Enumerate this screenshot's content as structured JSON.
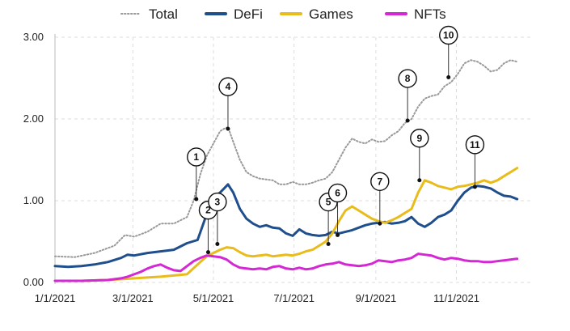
{
  "chart_data": {
    "type": "line",
    "title": "",
    "xlabel": "",
    "ylabel": "",
    "x_range": [
      0,
      360
    ],
    "ylim": [
      0,
      3.0
    ],
    "yticks": [
      {
        "value": 0,
        "label": "0.00"
      },
      {
        "value": 1,
        "label": "1.00"
      },
      {
        "value": 2,
        "label": "2.00"
      },
      {
        "value": 3,
        "label": "3.00"
      }
    ],
    "xticks": [
      {
        "day": 0,
        "label": "1/1/2021"
      },
      {
        "day": 59,
        "label": "3/1/2021"
      },
      {
        "day": 120,
        "label": "5/1/2021"
      },
      {
        "day": 181,
        "label": "7/1/2021"
      },
      {
        "day": 243,
        "label": "9/1/2021"
      },
      {
        "day": 304,
        "label": "11/1/2021"
      }
    ],
    "grid": true,
    "legend": "top",
    "x_unit": "days since 1/1/2021",
    "series": [
      {
        "name": "Total",
        "color": "#999999",
        "style": "dotted",
        "points": [
          [
            0,
            0.32
          ],
          [
            15,
            0.31
          ],
          [
            30,
            0.36
          ],
          [
            45,
            0.45
          ],
          [
            53,
            0.58
          ],
          [
            60,
            0.56
          ],
          [
            70,
            0.62
          ],
          [
            80,
            0.72
          ],
          [
            90,
            0.72
          ],
          [
            100,
            0.8
          ],
          [
            105,
            1.0
          ],
          [
            110,
            1.32
          ],
          [
            115,
            1.55
          ],
          [
            120,
            1.7
          ],
          [
            125,
            1.85
          ],
          [
            128,
            1.88
          ],
          [
            131,
            1.9
          ],
          [
            135,
            1.72
          ],
          [
            140,
            1.5
          ],
          [
            145,
            1.35
          ],
          [
            150,
            1.3
          ],
          [
            155,
            1.27
          ],
          [
            160,
            1.26
          ],
          [
            165,
            1.25
          ],
          [
            170,
            1.2
          ],
          [
            175,
            1.2
          ],
          [
            180,
            1.23
          ],
          [
            185,
            1.2
          ],
          [
            190,
            1.2
          ],
          [
            195,
            1.22
          ],
          [
            200,
            1.25
          ],
          [
            205,
            1.27
          ],
          [
            210,
            1.35
          ],
          [
            215,
            1.5
          ],
          [
            220,
            1.65
          ],
          [
            225,
            1.76
          ],
          [
            230,
            1.72
          ],
          [
            235,
            1.7
          ],
          [
            240,
            1.75
          ],
          [
            245,
            1.72
          ],
          [
            250,
            1.73
          ],
          [
            255,
            1.8
          ],
          [
            260,
            1.85
          ],
          [
            265,
            1.95
          ],
          [
            270,
            2.0
          ],
          [
            275,
            2.15
          ],
          [
            280,
            2.25
          ],
          [
            285,
            2.28
          ],
          [
            290,
            2.3
          ],
          [
            295,
            2.4
          ],
          [
            300,
            2.45
          ],
          [
            305,
            2.55
          ],
          [
            310,
            2.68
          ],
          [
            315,
            2.72
          ],
          [
            320,
            2.7
          ],
          [
            325,
            2.65
          ],
          [
            330,
            2.58
          ],
          [
            335,
            2.6
          ],
          [
            340,
            2.68
          ],
          [
            345,
            2.72
          ],
          [
            350,
            2.7
          ]
        ]
      },
      {
        "name": "DeFi",
        "color": "#1f4e8c",
        "style": "solid",
        "points": [
          [
            0,
            0.2
          ],
          [
            10,
            0.19
          ],
          [
            20,
            0.2
          ],
          [
            30,
            0.22
          ],
          [
            40,
            0.25
          ],
          [
            50,
            0.3
          ],
          [
            55,
            0.34
          ],
          [
            60,
            0.33
          ],
          [
            70,
            0.36
          ],
          [
            80,
            0.38
          ],
          [
            90,
            0.4
          ],
          [
            100,
            0.48
          ],
          [
            108,
            0.52
          ],
          [
            113,
            0.75
          ],
          [
            117,
            0.95
          ],
          [
            121,
            1.05
          ],
          [
            125,
            1.1
          ],
          [
            128,
            1.15
          ],
          [
            131,
            1.2
          ],
          [
            135,
            1.1
          ],
          [
            140,
            0.9
          ],
          [
            145,
            0.78
          ],
          [
            150,
            0.72
          ],
          [
            155,
            0.68
          ],
          [
            160,
            0.7
          ],
          [
            165,
            0.67
          ],
          [
            170,
            0.66
          ],
          [
            175,
            0.6
          ],
          [
            180,
            0.57
          ],
          [
            185,
            0.65
          ],
          [
            190,
            0.6
          ],
          [
            195,
            0.58
          ],
          [
            200,
            0.57
          ],
          [
            205,
            0.58
          ],
          [
            210,
            0.62
          ],
          [
            215,
            0.6
          ],
          [
            220,
            0.62
          ],
          [
            225,
            0.64
          ],
          [
            230,
            0.67
          ],
          [
            235,
            0.7
          ],
          [
            240,
            0.72
          ],
          [
            245,
            0.73
          ],
          [
            250,
            0.74
          ],
          [
            255,
            0.72
          ],
          [
            260,
            0.73
          ],
          [
            265,
            0.75
          ],
          [
            270,
            0.8
          ],
          [
            275,
            0.72
          ],
          [
            280,
            0.68
          ],
          [
            285,
            0.73
          ],
          [
            290,
            0.8
          ],
          [
            295,
            0.83
          ],
          [
            300,
            0.88
          ],
          [
            305,
            1.0
          ],
          [
            310,
            1.1
          ],
          [
            315,
            1.16
          ],
          [
            320,
            1.18
          ],
          [
            325,
            1.17
          ],
          [
            330,
            1.15
          ],
          [
            335,
            1.1
          ],
          [
            340,
            1.06
          ],
          [
            345,
            1.05
          ],
          [
            350,
            1.02
          ]
        ]
      },
      {
        "name": "Games",
        "color": "#e8bc1c",
        "style": "solid",
        "points": [
          [
            0,
            0.02
          ],
          [
            20,
            0.02
          ],
          [
            40,
            0.03
          ],
          [
            60,
            0.05
          ],
          [
            80,
            0.07
          ],
          [
            100,
            0.1
          ],
          [
            110,
            0.25
          ],
          [
            115,
            0.32
          ],
          [
            120,
            0.36
          ],
          [
            125,
            0.4
          ],
          [
            130,
            0.43
          ],
          [
            135,
            0.42
          ],
          [
            140,
            0.37
          ],
          [
            145,
            0.33
          ],
          [
            150,
            0.32
          ],
          [
            155,
            0.33
          ],
          [
            160,
            0.34
          ],
          [
            165,
            0.32
          ],
          [
            170,
            0.33
          ],
          [
            175,
            0.34
          ],
          [
            180,
            0.33
          ],
          [
            185,
            0.35
          ],
          [
            190,
            0.38
          ],
          [
            195,
            0.4
          ],
          [
            200,
            0.45
          ],
          [
            205,
            0.5
          ],
          [
            210,
            0.6
          ],
          [
            215,
            0.75
          ],
          [
            220,
            0.88
          ],
          [
            225,
            0.93
          ],
          [
            230,
            0.88
          ],
          [
            235,
            0.83
          ],
          [
            240,
            0.78
          ],
          [
            245,
            0.75
          ],
          [
            250,
            0.73
          ],
          [
            255,
            0.76
          ],
          [
            260,
            0.8
          ],
          [
            265,
            0.85
          ],
          [
            270,
            0.9
          ],
          [
            275,
            1.1
          ],
          [
            280,
            1.25
          ],
          [
            285,
            1.22
          ],
          [
            290,
            1.18
          ],
          [
            295,
            1.16
          ],
          [
            300,
            1.14
          ],
          [
            305,
            1.17
          ],
          [
            310,
            1.18
          ],
          [
            315,
            1.2
          ],
          [
            320,
            1.22
          ],
          [
            325,
            1.25
          ],
          [
            330,
            1.22
          ],
          [
            335,
            1.25
          ],
          [
            340,
            1.3
          ],
          [
            345,
            1.35
          ],
          [
            350,
            1.4
          ]
        ]
      },
      {
        "name": "NFTs",
        "color": "#d328d3",
        "style": "solid",
        "points": [
          [
            0,
            0.02
          ],
          [
            20,
            0.02
          ],
          [
            40,
            0.03
          ],
          [
            50,
            0.05
          ],
          [
            55,
            0.07
          ],
          [
            60,
            0.1
          ],
          [
            65,
            0.13
          ],
          [
            70,
            0.17
          ],
          [
            75,
            0.2
          ],
          [
            80,
            0.22
          ],
          [
            85,
            0.18
          ],
          [
            90,
            0.15
          ],
          [
            95,
            0.14
          ],
          [
            100,
            0.2
          ],
          [
            105,
            0.26
          ],
          [
            110,
            0.3
          ],
          [
            115,
            0.33
          ],
          [
            120,
            0.32
          ],
          [
            125,
            0.31
          ],
          [
            130,
            0.28
          ],
          [
            135,
            0.22
          ],
          [
            140,
            0.18
          ],
          [
            145,
            0.17
          ],
          [
            150,
            0.16
          ],
          [
            155,
            0.17
          ],
          [
            160,
            0.16
          ],
          [
            165,
            0.19
          ],
          [
            170,
            0.2
          ],
          [
            175,
            0.17
          ],
          [
            180,
            0.16
          ],
          [
            185,
            0.18
          ],
          [
            190,
            0.16
          ],
          [
            195,
            0.17
          ],
          [
            200,
            0.2
          ],
          [
            205,
            0.22
          ],
          [
            210,
            0.23
          ],
          [
            215,
            0.25
          ],
          [
            220,
            0.22
          ],
          [
            225,
            0.21
          ],
          [
            230,
            0.2
          ],
          [
            235,
            0.21
          ],
          [
            240,
            0.23
          ],
          [
            245,
            0.27
          ],
          [
            250,
            0.26
          ],
          [
            255,
            0.25
          ],
          [
            260,
            0.27
          ],
          [
            265,
            0.28
          ],
          [
            270,
            0.3
          ],
          [
            275,
            0.35
          ],
          [
            280,
            0.34
          ],
          [
            285,
            0.33
          ],
          [
            290,
            0.3
          ],
          [
            295,
            0.28
          ],
          [
            300,
            0.3
          ],
          [
            305,
            0.29
          ],
          [
            310,
            0.27
          ],
          [
            315,
            0.26
          ],
          [
            320,
            0.26
          ],
          [
            325,
            0.25
          ],
          [
            330,
            0.25
          ],
          [
            335,
            0.26
          ],
          [
            340,
            0.27
          ],
          [
            345,
            0.28
          ],
          [
            350,
            0.29
          ]
        ]
      }
    ],
    "annotations": [
      {
        "label": "1",
        "day": 107,
        "value": 1.02,
        "dir": "up"
      },
      {
        "label": "2",
        "day": 116,
        "value": 0.37,
        "dir": "up"
      },
      {
        "label": "3",
        "day": 123,
        "value": 0.47,
        "dir": "up"
      },
      {
        "label": "4",
        "day": 131,
        "value": 1.88,
        "dir": "up"
      },
      {
        "label": "5",
        "day": 207,
        "value": 0.47,
        "dir": "up"
      },
      {
        "label": "6",
        "day": 214,
        "value": 0.58,
        "dir": "up"
      },
      {
        "label": "7",
        "day": 246,
        "value": 0.72,
        "dir": "up"
      },
      {
        "label": "8",
        "day": 267,
        "value": 1.98,
        "dir": "up"
      },
      {
        "label": "9",
        "day": 276,
        "value": 1.25,
        "dir": "up"
      },
      {
        "label": "10",
        "day": 298,
        "value": 2.51,
        "dir": "up"
      },
      {
        "label": "11",
        "day": 318,
        "value": 1.17,
        "dir": "up"
      }
    ]
  }
}
